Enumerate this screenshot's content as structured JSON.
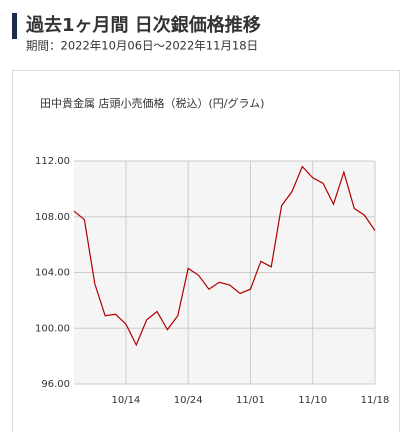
{
  "chart_data": {
    "type": "line",
    "title": "過去1ヶ月間 日次銀価格推移",
    "subtitle": "期間：2022年10月06日～2022年11月18日",
    "ylabel": "田中貴金属 店頭小売価格（税込）(円/グラム)",
    "categories": [
      null,
      null,
      null,
      null,
      null,
      "10/14",
      null,
      null,
      null,
      null,
      null,
      "10/24",
      null,
      null,
      null,
      null,
      null,
      "11/01",
      null,
      null,
      null,
      null,
      null,
      "11/10",
      null,
      null,
      null,
      null,
      null,
      "11/18"
    ],
    "values": [
      108.4,
      107.8,
      103.2,
      100.9,
      101.0,
      100.3,
      98.8,
      100.6,
      101.2,
      99.9,
      100.9,
      104.3,
      103.8,
      102.8,
      103.3,
      103.1,
      102.5,
      102.8,
      104.8,
      104.4,
      108.8,
      109.8,
      111.6,
      110.8,
      110.4,
      108.9,
      111.2,
      108.6,
      108.1,
      107.0
    ],
    "color": "#b00000",
    "ylim": [
      96,
      112
    ],
    "yticks": [
      {
        "value": 96,
        "label": "96.00"
      },
      {
        "value": 100,
        "label": "100.00"
      },
      {
        "value": 104,
        "label": "104.00"
      },
      {
        "value": 108,
        "label": "108.00"
      },
      {
        "value": 112,
        "label": "112.00"
      }
    ],
    "grid": true
  }
}
